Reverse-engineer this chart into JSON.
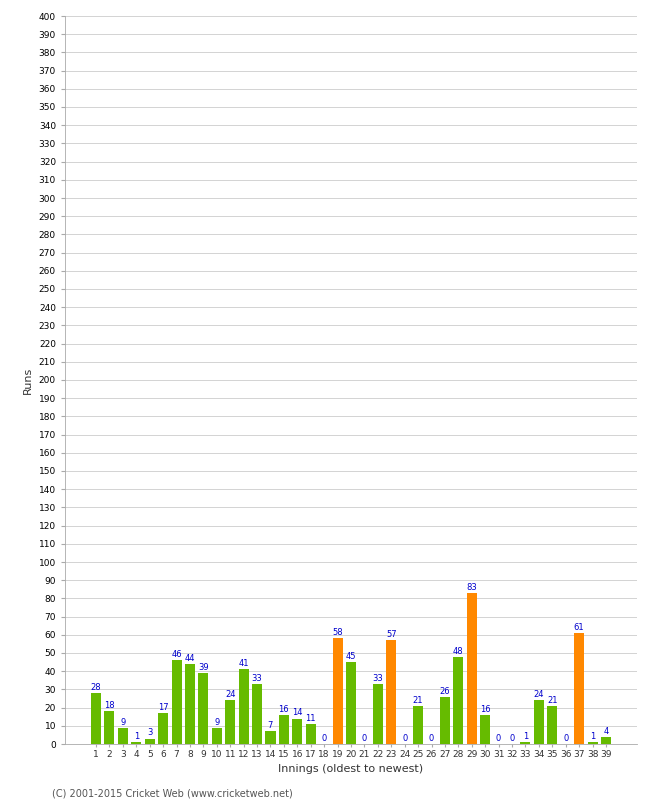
{
  "innings": [
    1,
    2,
    3,
    4,
    5,
    6,
    7,
    8,
    9,
    10,
    11,
    12,
    13,
    14,
    15,
    16,
    17,
    18,
    19,
    20,
    21,
    22,
    23,
    24,
    25,
    26,
    27,
    28,
    29,
    30,
    31,
    32,
    33,
    34,
    35,
    36,
    37,
    38,
    39
  ],
  "values": [
    28,
    18,
    9,
    1,
    3,
    17,
    46,
    44,
    39,
    9,
    24,
    41,
    33,
    7,
    16,
    14,
    11,
    0,
    58,
    45,
    0,
    33,
    57,
    0,
    21,
    0,
    26,
    48,
    83,
    16,
    0,
    0,
    1,
    24,
    21,
    0,
    61,
    1,
    4
  ],
  "colors": [
    "#66bb00",
    "#66bb00",
    "#66bb00",
    "#66bb00",
    "#66bb00",
    "#66bb00",
    "#66bb00",
    "#66bb00",
    "#66bb00",
    "#66bb00",
    "#66bb00",
    "#66bb00",
    "#66bb00",
    "#66bb00",
    "#66bb00",
    "#66bb00",
    "#66bb00",
    "#66bb00",
    "#ff8800",
    "#66bb00",
    "#66bb00",
    "#66bb00",
    "#ff8800",
    "#66bb00",
    "#66bb00",
    "#66bb00",
    "#66bb00",
    "#66bb00",
    "#ff8800",
    "#66bb00",
    "#66bb00",
    "#66bb00",
    "#66bb00",
    "#66bb00",
    "#66bb00",
    "#66bb00",
    "#ff8800",
    "#66bb00",
    "#66bb00"
  ],
  "xlabel": "Innings (oldest to newest)",
  "ylabel": "Runs",
  "ylim": [
    0,
    400
  ],
  "ytick_step": 10,
  "label_color": "#0000cc",
  "bg_color": "#ffffff",
  "grid_color": "#cccccc",
  "footer": "(C) 2001-2015 Cricket Web (www.cricketweb.net)"
}
